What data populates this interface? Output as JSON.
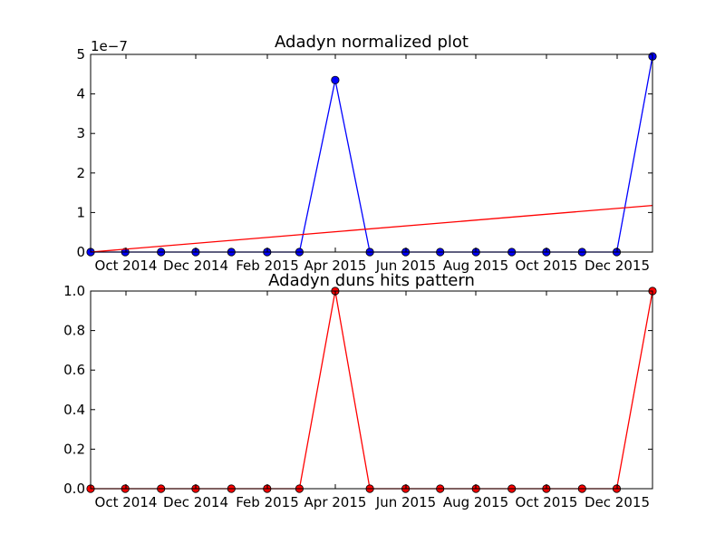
{
  "chart_data": [
    {
      "type": "line",
      "title": "Adadyn normalized plot",
      "offset_label": "1e−7",
      "x_tick_labels": [
        "Oct 2014",
        "Dec 2014",
        "Feb 2015",
        "Apr 2015",
        "Jun 2015",
        "Aug 2015",
        "Oct 2015",
        "Dec 2015"
      ],
      "y_tick_labels": [
        "0",
        "1",
        "2",
        "3",
        "4",
        "5"
      ],
      "ylim": [
        0,
        5
      ],
      "grid": false,
      "x": [
        "2014-09-01",
        "2014-10-01",
        "2014-11-01",
        "2014-12-01",
        "2015-01-01",
        "2015-02-01",
        "2015-03-01",
        "2015-04-01",
        "2015-05-01",
        "2015-06-01",
        "2015-07-01",
        "2015-08-01",
        "2015-09-01",
        "2015-10-01",
        "2015-11-01",
        "2015-12-01",
        "2016-01-01"
      ],
      "series": [
        {
          "color": "#0000ff",
          "marker": "circle",
          "values": [
            0,
            0,
            0,
            0,
            0,
            0,
            0,
            4.35,
            0,
            0,
            0,
            0,
            0,
            0,
            0,
            0,
            4.95
          ]
        },
        {
          "color": "#ff0000",
          "marker": "none",
          "values": [
            0,
            null,
            null,
            null,
            null,
            null,
            null,
            null,
            null,
            null,
            null,
            null,
            null,
            null,
            null,
            null,
            1.18
          ]
        }
      ]
    },
    {
      "type": "line",
      "title": "Adadyn duns hits pattern",
      "x_tick_labels": [
        "Oct 2014",
        "Dec 2014",
        "Feb 2015",
        "Apr 2015",
        "Jun 2015",
        "Aug 2015",
        "Oct 2015",
        "Dec 2015"
      ],
      "y_tick_labels": [
        "0.0",
        "0.2",
        "0.4",
        "0.6",
        "0.8",
        "1.0"
      ],
      "ylim": [
        0,
        1
      ],
      "grid": false,
      "x": [
        "2014-09-01",
        "2014-10-01",
        "2014-11-01",
        "2014-12-01",
        "2015-01-01",
        "2015-02-01",
        "2015-03-01",
        "2015-04-01",
        "2015-05-01",
        "2015-06-01",
        "2015-07-01",
        "2015-08-01",
        "2015-09-01",
        "2015-10-01",
        "2015-11-01",
        "2015-12-01",
        "2016-01-01"
      ],
      "series": [
        {
          "color": "#ff0000",
          "marker": "circle",
          "values": [
            0,
            0,
            0,
            0,
            0,
            0,
            0,
            1,
            0,
            0,
            0,
            0,
            0,
            0,
            0,
            0,
            1
          ]
        }
      ]
    }
  ]
}
